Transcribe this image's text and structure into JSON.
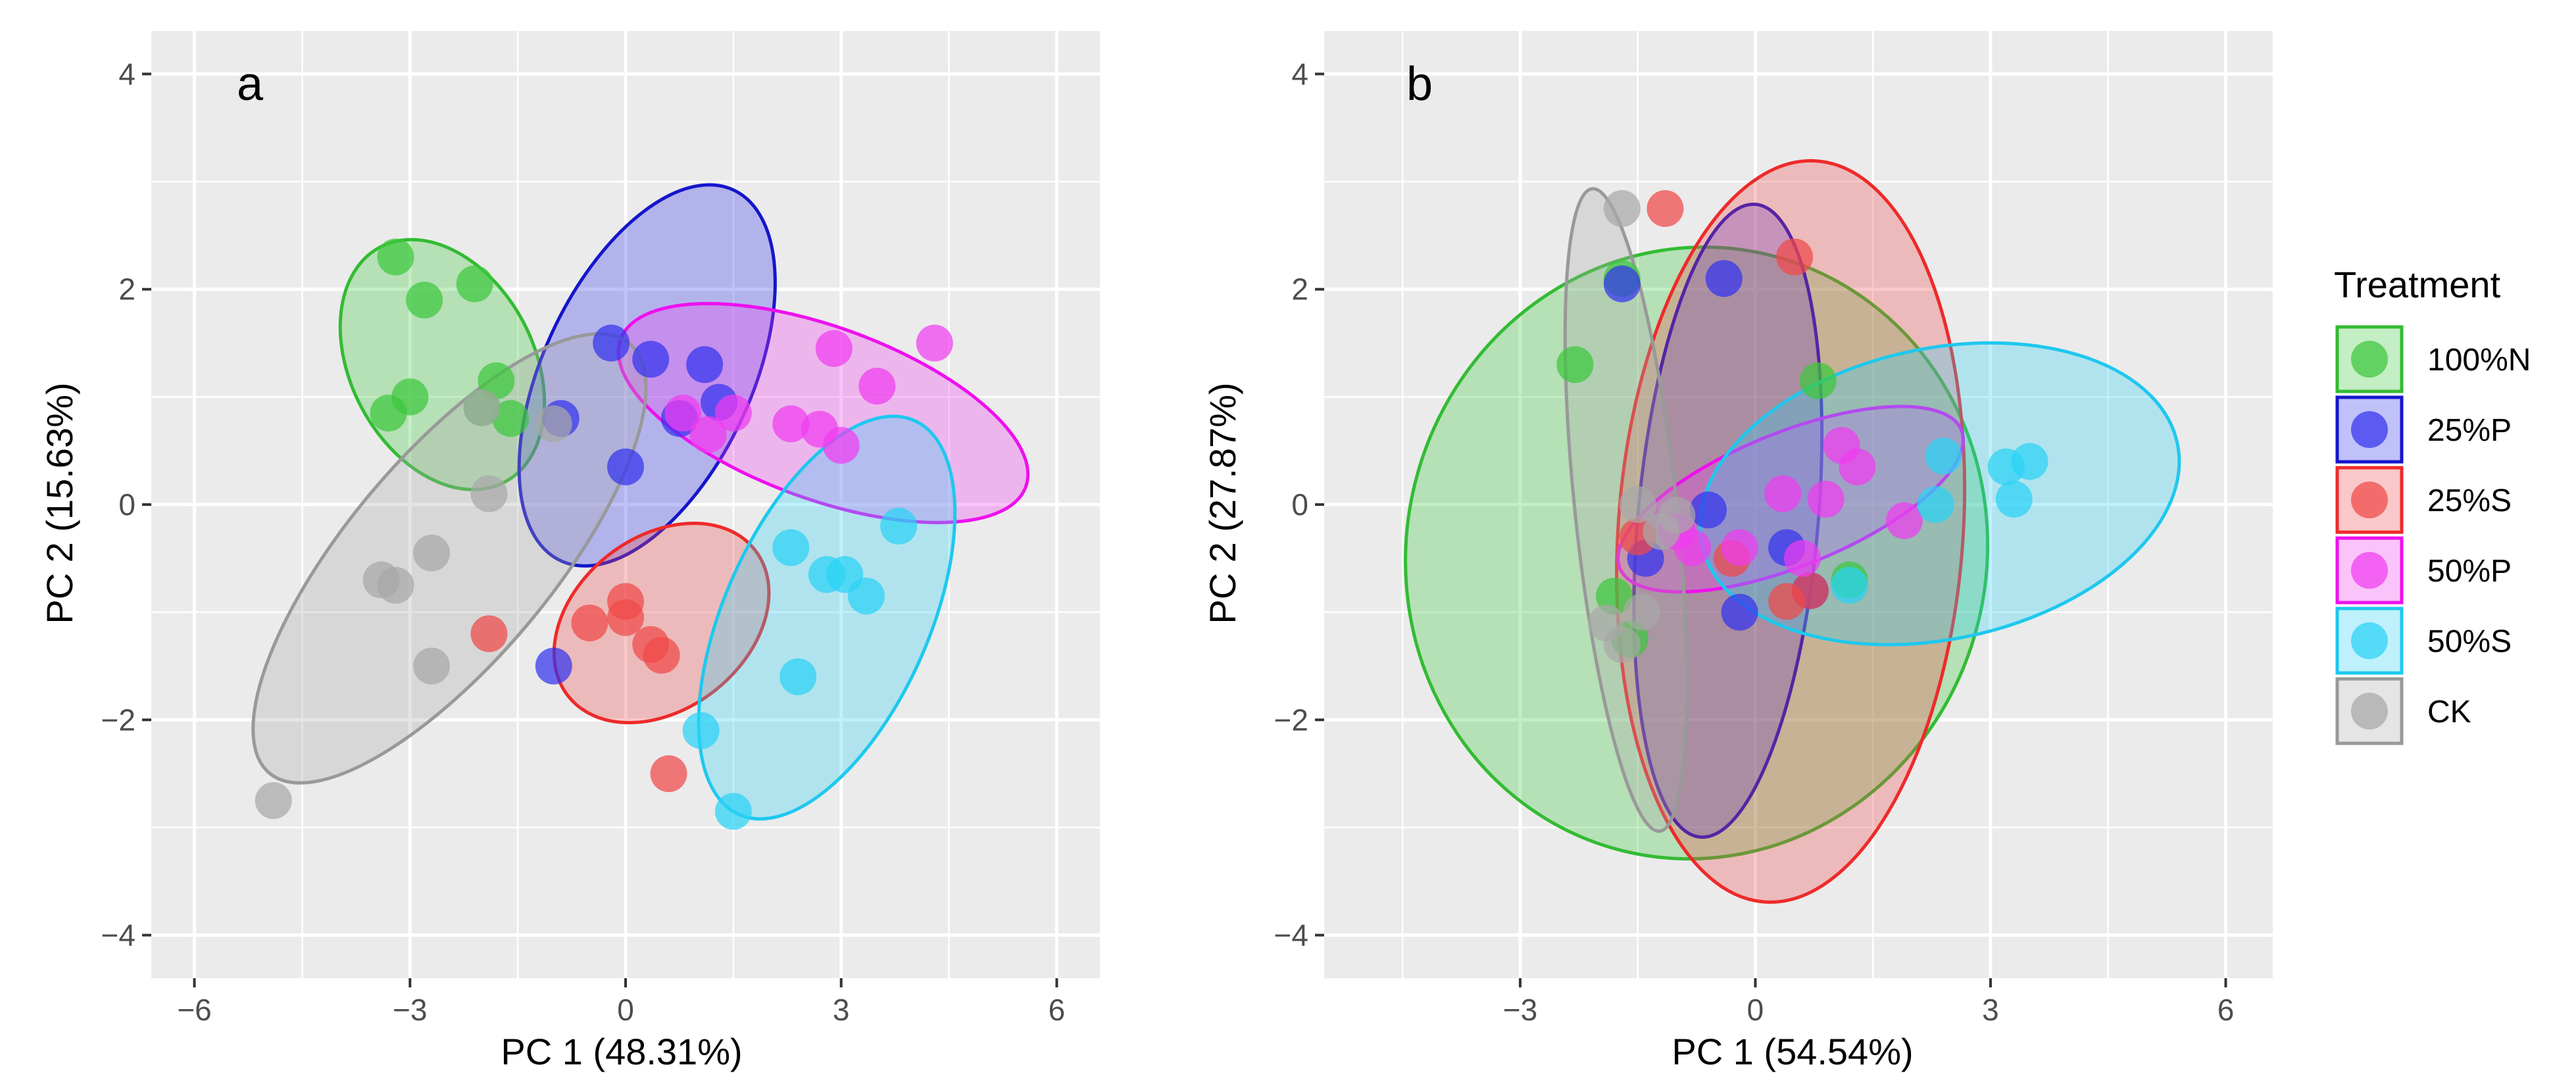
{
  "figure": {
    "legend": {
      "title": "Treatment",
      "placement": "right",
      "items": [
        {
          "key": "100N",
          "label": "100%N"
        },
        {
          "key": "25P",
          "label": "25%P"
        },
        {
          "key": "25S",
          "label": "25%S"
        },
        {
          "key": "50P",
          "label": "50%P"
        },
        {
          "key": "50S",
          "label": "50%S"
        },
        {
          "key": "CK",
          "label": "CK"
        }
      ]
    },
    "colors": {
      "100N": "#3cc83c",
      "25P": "#3333ee",
      "25S": "#f04848",
      "50P": "#f03cf0",
      "50S": "#2ad2f5",
      "CK": "#a8a8a8",
      "ellipse_stroke": {
        "100N": "#33bb33",
        "25P": "#1515cc",
        "25S": "#ee2a2a",
        "50P": "#ee10ee",
        "50S": "#1ec8ee",
        "CK": "#999999"
      },
      "panel_background": "#ebebeb",
      "gridline": "#ffffff"
    }
  },
  "chart_data": [
    {
      "type": "scatter",
      "panel_label": "a",
      "xlabel": "PC 1 (48.31%)",
      "ylabel": "PC 2 (15.63%)",
      "xlim": [
        -6.6,
        6.6
      ],
      "ylim": [
        -4.4,
        4.4
      ],
      "xticks": [
        -6,
        -3,
        0,
        3,
        6
      ],
      "yticks": [
        -4,
        -2,
        0,
        2,
        4
      ],
      "xtick_labels": [
        "−6",
        "−3",
        "0",
        "3",
        "6"
      ],
      "ytick_labels": [
        "−4",
        "−2",
        "0",
        "2",
        "4"
      ],
      "grid": true,
      "series": [
        {
          "name": "100%N",
          "key": "100N",
          "points": [
            [
              -3.2,
              2.3
            ],
            [
              -2.8,
              1.9
            ],
            [
              -2.1,
              2.05
            ],
            [
              -3.0,
              1.0
            ],
            [
              -3.3,
              0.85
            ],
            [
              -1.8,
              1.15
            ],
            [
              -1.6,
              0.8
            ],
            [
              -2.0,
              0.9
            ]
          ],
          "ellipse": {
            "cx": -2.55,
            "cy": 1.3,
            "rx": 1.85,
            "ry": 0.85,
            "angle": -62
          }
        },
        {
          "name": "25%P",
          "key": "25P",
          "points": [
            [
              -0.2,
              1.5
            ],
            [
              0.35,
              1.35
            ],
            [
              1.1,
              1.3
            ],
            [
              1.3,
              0.95
            ],
            [
              0.75,
              0.8
            ],
            [
              -0.9,
              0.8
            ],
            [
              0.0,
              0.35
            ],
            [
              -1.0,
              -1.5
            ]
          ],
          "ellipse": {
            "cx": 0.3,
            "cy": 1.2,
            "rx": 1.45,
            "ry": 1.9,
            "angle": -25
          }
        },
        {
          "name": "25%S",
          "key": "25S",
          "points": [
            [
              0.0,
              -0.9
            ],
            [
              -0.5,
              -1.1
            ],
            [
              0.0,
              -1.05
            ],
            [
              0.35,
              -1.3
            ],
            [
              0.5,
              -1.4
            ],
            [
              -1.9,
              -1.2
            ],
            [
              0.6,
              -2.5
            ]
          ],
          "ellipse": {
            "cx": 0.5,
            "cy": -1.1,
            "rx": 1.65,
            "ry": 0.8,
            "angle": 38
          }
        },
        {
          "name": "50%P",
          "key": "50P",
          "points": [
            [
              2.9,
              1.45
            ],
            [
              4.3,
              1.5
            ],
            [
              3.5,
              1.1
            ],
            [
              2.3,
              0.75
            ],
            [
              2.7,
              0.7
            ],
            [
              3.0,
              0.55
            ],
            [
              1.5,
              0.85
            ],
            [
              1.15,
              0.65
            ],
            [
              0.8,
              0.85
            ]
          ],
          "ellipse": {
            "cx": 2.75,
            "cy": 0.85,
            "rx": 3.0,
            "ry": 0.8,
            "angle": -20
          }
        },
        {
          "name": "50%S",
          "key": "50S",
          "points": [
            [
              3.8,
              -0.2
            ],
            [
              2.3,
              -0.4
            ],
            [
              2.8,
              -0.65
            ],
            [
              3.05,
              -0.65
            ],
            [
              3.35,
              -0.85
            ],
            [
              2.4,
              -1.6
            ],
            [
              1.05,
              -2.1
            ],
            [
              1.5,
              -2.85
            ]
          ],
          "ellipse": {
            "cx": 2.8,
            "cy": -1.05,
            "rx": 3.0,
            "ry": 0.95,
            "angle": 66
          }
        },
        {
          "name": "CK",
          "key": "CK",
          "points": [
            [
              -2.0,
              0.9
            ],
            [
              -1.9,
              0.1
            ],
            [
              -1.0,
              0.75
            ],
            [
              -3.4,
              -0.7
            ],
            [
              -3.2,
              -0.75
            ],
            [
              -2.7,
              -0.45
            ],
            [
              -2.7,
              -1.5
            ],
            [
              -4.9,
              -2.75
            ]
          ],
          "ellipse": {
            "cx": -2.45,
            "cy": -0.5,
            "rx": 3.9,
            "ry": 0.95,
            "angle": 50
          }
        }
      ]
    },
    {
      "type": "scatter",
      "panel_label": "b",
      "xlabel": "PC 1 (54.54%)",
      "ylabel": "PC 2 (27.87%)",
      "xlim": [
        -5.5,
        6.6
      ],
      "ylim": [
        -4.4,
        4.4
      ],
      "xticks": [
        -3,
        0,
        3,
        6
      ],
      "yticks": [
        -4,
        -2,
        0,
        2,
        4
      ],
      "xtick_labels": [
        "−3",
        "0",
        "3",
        "6"
      ],
      "ytick_labels": [
        "−4",
        "−2",
        "0",
        "2",
        "4"
      ],
      "grid": true,
      "series": [
        {
          "name": "100%N",
          "key": "100N",
          "points": [
            [
              -2.3,
              1.3
            ],
            [
              -1.7,
              2.1
            ],
            [
              0.8,
              1.15
            ],
            [
              -1.8,
              -0.85
            ],
            [
              -1.6,
              -1.25
            ],
            [
              1.2,
              -0.7
            ]
          ],
          "ellipse": {
            "cx": -0.75,
            "cy": -0.45,
            "rx": 3.7,
            "ry": 2.85,
            "angle": -14
          }
        },
        {
          "name": "25%P",
          "key": "25P",
          "points": [
            [
              -1.7,
              2.05
            ],
            [
              -0.4,
              2.1
            ],
            [
              -1.4,
              -0.5
            ],
            [
              -0.6,
              -0.05
            ],
            [
              0.4,
              -0.4
            ],
            [
              -0.2,
              -1.0
            ],
            [
              0.7,
              -0.8
            ]
          ],
          "ellipse": {
            "cx": -0.35,
            "cy": -0.15,
            "rx": 1.15,
            "ry": 2.95,
            "angle": -5
          }
        },
        {
          "name": "25%S",
          "key": "25S",
          "points": [
            [
              -1.15,
              2.75
            ],
            [
              0.5,
              2.3
            ],
            [
              -0.3,
              -0.5
            ],
            [
              0.7,
              -0.8
            ],
            [
              -1.5,
              -0.3
            ],
            [
              0.4,
              -0.9
            ]
          ],
          "ellipse": {
            "cx": 0.45,
            "cy": -0.25,
            "rx": 2.2,
            "ry": 3.45,
            "angle": -4
          }
        },
        {
          "name": "50%P",
          "key": "50P",
          "points": [
            [
              1.1,
              0.55
            ],
            [
              1.3,
              0.35
            ],
            [
              0.35,
              0.1
            ],
            [
              0.9,
              0.05
            ],
            [
              1.9,
              -0.15
            ],
            [
              -0.8,
              -0.4
            ],
            [
              0.6,
              -0.5
            ],
            [
              -1.0,
              -0.25
            ],
            [
              -0.2,
              -0.4
            ]
          ],
          "ellipse": {
            "cx": 0.45,
            "cy": 0.05,
            "rx": 2.35,
            "ry": 0.62,
            "angle": 22
          }
        },
        {
          "name": "50%S",
          "key": "50S",
          "points": [
            [
              3.2,
              0.35
            ],
            [
              3.5,
              0.4
            ],
            [
              2.4,
              0.45
            ],
            [
              3.3,
              0.05
            ],
            [
              2.3,
              0.0
            ],
            [
              1.2,
              -0.75
            ]
          ],
          "ellipse": {
            "cx": 2.35,
            "cy": 0.1,
            "rx": 3.1,
            "ry": 1.35,
            "angle": 12
          }
        },
        {
          "name": "CK",
          "key": "CK",
          "points": [
            [
              -1.7,
              2.75
            ],
            [
              -1.5,
              0.0
            ],
            [
              -1.2,
              -0.25
            ],
            [
              -1.9,
              -1.1
            ],
            [
              -1.7,
              -1.3
            ],
            [
              -1.45,
              -1.0
            ],
            [
              -1.0,
              -0.1
            ]
          ],
          "ellipse": {
            "cx": -1.65,
            "cy": -0.05,
            "rx": 0.65,
            "ry": 3.0,
            "angle": 6
          }
        }
      ]
    }
  ]
}
